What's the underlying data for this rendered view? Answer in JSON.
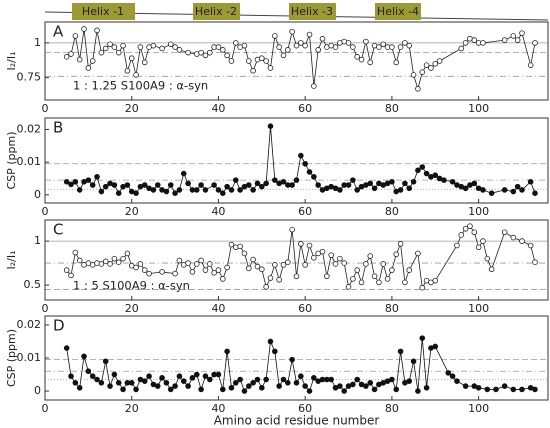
{
  "header": {
    "helices": [
      "Helix -1",
      "Helix -2",
      "Helix -3",
      "Helix -4"
    ]
  },
  "chart_data": [
    {
      "type": "line",
      "panel_label": "A",
      "annotation": "1 : 1.25  S100A9 : α-syn",
      "y_label": "I₂/I₁",
      "xlim": [
        0,
        116
      ],
      "xticks": [
        0,
        20,
        40,
        60,
        80,
        100
      ],
      "ylim": [
        0.59,
        1.15
      ],
      "yticks": [
        0.75,
        1
      ],
      "reference_lines": [
        {
          "value": 1,
          "style": "solid"
        },
        {
          "value": 0.93,
          "style": "dashed"
        },
        {
          "value": 0.76,
          "style": "dashdot"
        }
      ],
      "x": [
        5,
        6,
        7,
        8,
        9,
        10,
        11,
        12,
        13,
        14,
        15,
        16,
        17,
        18,
        19,
        20,
        21,
        22,
        23,
        24,
        25,
        27,
        29,
        30,
        31,
        33,
        35,
        36,
        37,
        38,
        39,
        40,
        41,
        42,
        43,
        44,
        45,
        46,
        47,
        48,
        49,
        50,
        51,
        52,
        53,
        54,
        55,
        56,
        57,
        58,
        59,
        60,
        61,
        62,
        63,
        64,
        65,
        66,
        67,
        68,
        69,
        70,
        71,
        72,
        73,
        74,
        75,
        76,
        77,
        78,
        79,
        80,
        81,
        82,
        83,
        84,
        85,
        86,
        87,
        88,
        89,
        90,
        91,
        96,
        97,
        98,
        99,
        100,
        101,
        106,
        108,
        109,
        110,
        112,
        113
      ],
      "series": [
        {
          "marker": "open",
          "color": "#222222",
          "values": [
            0.9,
            0.92,
            1.05,
            0.88,
            1.1,
            0.82,
            0.87,
            1.09,
            0.93,
            0.96,
            0.99,
            0.97,
            0.93,
            0.98,
            0.8,
            0.89,
            0.77,
            0.97,
            0.86,
            0.97,
            0.98,
            0.96,
            0.99,
            0.97,
            0.95,
            0.93,
            0.92,
            0.93,
            0.91,
            0.93,
            0.97,
            0.97,
            0.95,
            0.91,
            0.87,
            1.0,
            0.97,
            0.98,
            0.87,
            0.8,
            0.88,
            0.89,
            0.87,
            0.82,
            1.05,
            0.97,
            0.91,
            0.95,
            1.08,
            0.98,
            1.0,
            0.98,
            1.06,
            0.69,
            0.95,
            1.03,
            0.97,
            0.98,
            0.97,
            1.0,
            1.01,
            1.0,
            0.97,
            0.9,
            0.88,
            1.01,
            0.86,
            0.98,
            0.97,
            0.99,
            0.97,
            0.97,
            0.86,
            0.97,
            1.0,
            0.98,
            0.77,
            0.67,
            0.79,
            0.84,
            0.82,
            0.85,
            0.87,
            0.96,
            1.0,
            1.03,
            1.02,
            1.0,
            1.0,
            1.02,
            1.05,
            1.02,
            1.07,
            0.84,
            1.0
          ]
        }
      ]
    },
    {
      "type": "line",
      "panel_label": "B",
      "y_label": "CSP (ppm)",
      "xlim": [
        0,
        116
      ],
      "xticks": [
        0,
        20,
        40,
        60,
        80,
        100
      ],
      "ylim": [
        -0.0025,
        0.0235
      ],
      "yticks": [
        0,
        0.01,
        0.02
      ],
      "reference_lines": [
        {
          "value": 0.0095,
          "style": "dashed"
        },
        {
          "value": 0.0045,
          "style": "dashdot"
        },
        {
          "value": 0.0017,
          "style": "dotted"
        }
      ],
      "x": [
        5,
        6,
        7,
        8,
        9,
        10,
        11,
        12,
        13,
        14,
        15,
        16,
        17,
        18,
        19,
        20,
        21,
        22,
        23,
        24,
        25,
        26,
        27,
        28,
        29,
        30,
        31,
        32,
        33,
        34,
        35,
        36,
        37,
        39,
        40,
        41,
        42,
        43,
        44,
        45,
        46,
        47,
        48,
        49,
        50,
        51,
        52,
        53,
        54,
        55,
        56,
        57,
        58,
        59,
        60,
        61,
        62,
        63,
        64,
        65,
        66,
        67,
        68,
        69,
        70,
        71,
        72,
        73,
        74,
        75,
        76,
        77,
        78,
        79,
        80,
        81,
        82,
        83,
        84,
        85,
        86,
        87,
        88,
        89,
        90,
        91,
        92,
        94,
        95,
        96,
        97,
        98,
        99,
        100,
        101,
        103,
        106,
        108,
        109,
        110,
        112,
        113
      ],
      "series": [
        {
          "marker": "filled",
          "color": "#111111",
          "values": [
            0.004,
            0.0032,
            0.004,
            0.0015,
            0.004,
            0.0045,
            0.003,
            0.0055,
            0.001,
            0.0025,
            0.0035,
            0.003,
            0.0005,
            0.0025,
            0.003,
            0.001,
            0.0005,
            0.0025,
            0.003,
            0.002,
            0.0015,
            0.003,
            0.0015,
            0.001,
            0.003,
            0.0005,
            0.0015,
            0.0065,
            0.0035,
            0.0015,
            0.0015,
            0.003,
            0.0015,
            0.003,
            0.0015,
            0.0005,
            0.0025,
            0.0015,
            0.0045,
            0.0015,
            0.0025,
            0.003,
            0.0015,
            0.0035,
            0.0025,
            0.0035,
            0.021,
            0.0045,
            0.0035,
            0.004,
            0.003,
            0.003,
            0.0045,
            0.012,
            0.0095,
            0.007,
            0.0055,
            0.003,
            0.0015,
            0.002,
            0.0025,
            0.002,
            0.0015,
            0.003,
            0.003,
            0.0045,
            0.0015,
            0.0025,
            0.003,
            0.0035,
            0.002,
            0.0035,
            0.003,
            0.0035,
            0.004,
            0.001,
            0.0015,
            0.0035,
            0.002,
            0.004,
            0.0075,
            0.0085,
            0.0065,
            0.0055,
            0.006,
            0.005,
            0.0045,
            0.004,
            0.003,
            0.0025,
            0.002,
            0.003,
            0.0035,
            0.002,
            0.0015,
            0.0005,
            0.0015,
            0.001,
            0.0025,
            0.0015,
            0.004,
            0.0005
          ]
        }
      ]
    },
    {
      "type": "line",
      "panel_label": "C",
      "annotation": "1 : 5  S100A9 : α-syn",
      "y_label": "I₂/I₁",
      "xlim": [
        0,
        116
      ],
      "xticks": [
        0,
        20,
        40,
        60,
        80,
        100
      ],
      "ylim": [
        0.33,
        1.24
      ],
      "yticks": [
        0.5,
        1
      ],
      "reference_lines": [
        {
          "value": 1,
          "style": "solid"
        },
        {
          "value": 0.75,
          "style": "dashdot"
        },
        {
          "value": 0.45,
          "style": "dashed"
        }
      ],
      "x": [
        5,
        6,
        7,
        8,
        9,
        10,
        11,
        12,
        13,
        14,
        15,
        16,
        17,
        18,
        19,
        20,
        21,
        22,
        23,
        24,
        27,
        30,
        31,
        32,
        33,
        34,
        35,
        36,
        37,
        38,
        39,
        40,
        41,
        42,
        43,
        44,
        45,
        46,
        47,
        48,
        49,
        50,
        51,
        52,
        53,
        54,
        55,
        56,
        57,
        58,
        59,
        60,
        61,
        62,
        63,
        64,
        65,
        66,
        67,
        68,
        69,
        70,
        71,
        72,
        73,
        74,
        75,
        76,
        77,
        78,
        79,
        80,
        81,
        82,
        83,
        84,
        86,
        87,
        88,
        89,
        90,
        95,
        96,
        97,
        98,
        99,
        100,
        101,
        102,
        103,
        106,
        108,
        110,
        112,
        113
      ],
      "series": [
        {
          "marker": "open",
          "color": "#222222",
          "values": [
            0.67,
            0.61,
            0.87,
            0.78,
            0.73,
            0.75,
            0.73,
            0.75,
            0.74,
            0.77,
            0.74,
            0.8,
            0.76,
            0.8,
            0.86,
            0.72,
            0.7,
            0.74,
            0.67,
            0.63,
            0.65,
            0.63,
            0.78,
            0.73,
            0.75,
            0.65,
            0.74,
            0.78,
            0.67,
            0.74,
            0.64,
            0.67,
            0.57,
            0.7,
            0.96,
            0.93,
            0.94,
            0.86,
            0.69,
            0.79,
            0.71,
            0.68,
            0.48,
            0.58,
            0.73,
            0.56,
            0.73,
            0.76,
            1.13,
            0.6,
            0.97,
            0.73,
            0.95,
            0.81,
            0.86,
            0.88,
            0.6,
            0.84,
            0.74,
            0.8,
            0.75,
            0.48,
            0.57,
            0.67,
            0.53,
            0.74,
            0.83,
            0.6,
            0.53,
            0.74,
            0.57,
            0.67,
            0.85,
            0.97,
            0.53,
            0.67,
            0.86,
            0.47,
            0.55,
            0.53,
            0.55,
            0.95,
            1.07,
            1.14,
            1.17,
            1.1,
            0.93,
            1.0,
            0.8,
            0.68,
            1.1,
            1.04,
            1.0,
            0.95,
            0.76
          ]
        }
      ]
    },
    {
      "type": "line",
      "panel_label": "D",
      "y_label": "CSP (ppm)",
      "x_label": "Amino acid residue number",
      "xlim": [
        0,
        116
      ],
      "xticks": [
        0,
        20,
        40,
        60,
        80,
        100
      ],
      "ylim": [
        -0.0027,
        0.0227
      ],
      "yticks": [
        0,
        0.01,
        0.02
      ],
      "reference_lines": [
        {
          "value": 0.0095,
          "style": "dashed"
        },
        {
          "value": 0.006,
          "style": "dashdot"
        },
        {
          "value": 0.0035,
          "style": "dotted"
        }
      ],
      "x": [
        5,
        6,
        7,
        8,
        9,
        10,
        11,
        12,
        13,
        14,
        15,
        16,
        17,
        18,
        19,
        20,
        21,
        22,
        23,
        24,
        25,
        26,
        27,
        28,
        29,
        30,
        31,
        32,
        33,
        34,
        35,
        36,
        37,
        38,
        39,
        40,
        41,
        42,
        43,
        44,
        45,
        46,
        47,
        48,
        49,
        50,
        51,
        52,
        53,
        54,
        55,
        56,
        57,
        58,
        59,
        60,
        61,
        62,
        63,
        64,
        65,
        66,
        67,
        68,
        69,
        70,
        71,
        72,
        73,
        74,
        75,
        76,
        77,
        78,
        79,
        80,
        81,
        82,
        83,
        84,
        85,
        86,
        87,
        88,
        89,
        90,
        93,
        94,
        95,
        97,
        99,
        100,
        102,
        104,
        106,
        108,
        110,
        112,
        113
      ],
      "series": [
        {
          "marker": "filled",
          "color": "#111111",
          "values": [
            0.013,
            0.0045,
            0.0025,
            0.001,
            0.0105,
            0.006,
            0.0045,
            0.0035,
            0.0025,
            0.009,
            0.0015,
            0.005,
            0.0025,
            0.0005,
            0.0025,
            0.0025,
            0.0005,
            0.0035,
            0.003,
            0.0045,
            0.002,
            0.0015,
            0.004,
            0.0025,
            0.0005,
            0.0015,
            0.0045,
            0.003,
            0.0015,
            0.004,
            0.005,
            0.0005,
            0.0045,
            0.0035,
            0.005,
            0.005,
            0.0005,
            0.012,
            0.001,
            0.0025,
            0.0035,
            0,
            0.0015,
            0.0025,
            0.0035,
            0.001,
            0.0035,
            0.015,
            0.012,
            0.0015,
            0.0035,
            0.0025,
            0.0095,
            0.0025,
            0.0045,
            0.0015,
            0,
            0.004,
            0.003,
            0.0035,
            0.0035,
            0.0035,
            0.001,
            0.0015,
            0,
            0.0015,
            0.002,
            0.0035,
            0.002,
            0.0015,
            0.0025,
            0.0005,
            0.002,
            0.0025,
            0.003,
            0.0035,
            0.0005,
            0.012,
            0.0025,
            0.003,
            0.009,
            0,
            0.016,
            0.001,
            0.013,
            0.0135,
            0.0055,
            0.0045,
            0.003,
            0.0015,
            0.0015,
            0.001,
            0.0005,
            0.0005,
            0.0015,
            0.0005,
            0.0005,
            0.001,
            0.0005
          ]
        }
      ]
    }
  ]
}
